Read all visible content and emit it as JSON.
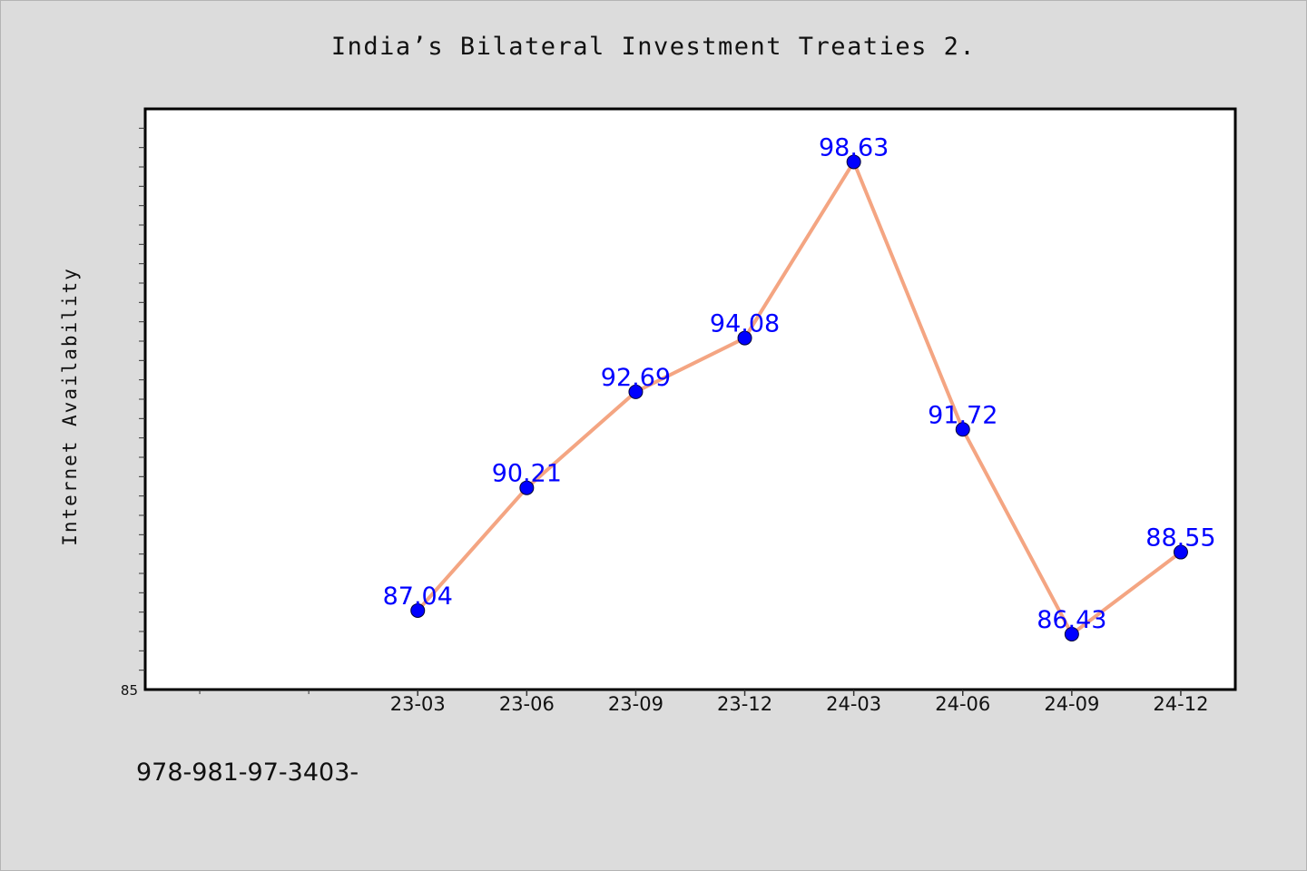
{
  "chart_data": {
    "type": "line",
    "title": "India’s Bilateral Investment Treaties 2.",
    "xlabel": "",
    "ylabel": "Internet Availability",
    "categories": [
      "23-03",
      "23-06",
      "23-09",
      "23-12",
      "24-03",
      "24-06",
      "24-09",
      "24-12"
    ],
    "series": [
      {
        "values": [
          87.04,
          90.21,
          92.69,
          94.08,
          98.63,
          91.72,
          86.43,
          88.55
        ]
      }
    ],
    "data_labels": [
      "87.04",
      "90.21",
      "92.69",
      "94.08",
      "98.63",
      "91.72",
      "86.43",
      "88.55"
    ],
    "y_tick_labels": [
      "85"
    ],
    "ylim": [
      85,
      100
    ],
    "grid": false,
    "legend": "none",
    "colors": {
      "line": "#f4a582",
      "marker": "#0000ff",
      "data_label": "#0000ff"
    }
  },
  "footer": "978-981-97-3403-"
}
